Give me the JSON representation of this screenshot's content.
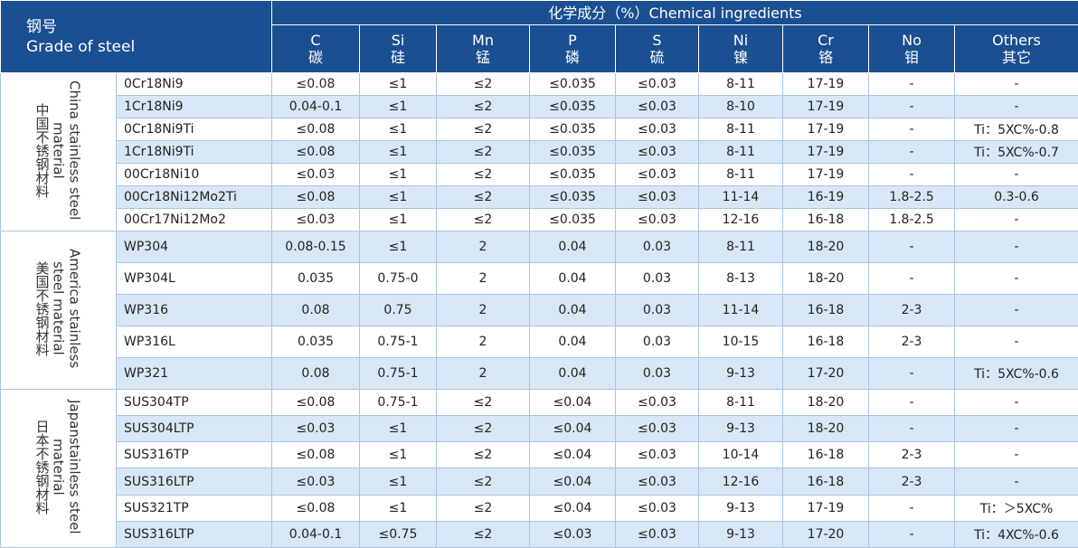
{
  "header": {
    "grade_zh": "钢号",
    "grade_en": "Grade of steel",
    "group_title": "化学成分（%）Chemical ingredients",
    "columns": [
      {
        "symbol": "C",
        "zh": "碳"
      },
      {
        "symbol": "Si",
        "zh": "硅"
      },
      {
        "symbol": "Mn",
        "zh": "锰"
      },
      {
        "symbol": "P",
        "zh": "磷"
      },
      {
        "symbol": "S",
        "zh": "硫"
      },
      {
        "symbol": "Ni",
        "zh": "镍"
      },
      {
        "symbol": "Cr",
        "zh": "铬"
      },
      {
        "symbol": "No",
        "zh": "钼"
      },
      {
        "symbol": "Others",
        "zh": "其它"
      }
    ]
  },
  "groups": [
    {
      "label_en": "China stainless steel material",
      "label_zh": "中国不锈钢材料",
      "rows": [
        [
          "0Cr18Ni9",
          "≤0.08",
          "≤1",
          "≤2",
          "≤0.035",
          "≤0.03",
          "8-11",
          "17-19",
          "-",
          "-"
        ],
        [
          "1Cr18Ni9",
          "0.04-0.1",
          "≤1",
          "≤2",
          "≤0.035",
          "≤0.03",
          "8-10",
          "17-19",
          "-",
          "-"
        ],
        [
          "0Cr18Ni9Ti",
          "≤0.08",
          "≤1",
          "≤2",
          "≤0.035",
          "≤0.03",
          "8-11",
          "17-19",
          "-",
          "Ti：5XC%-0.8"
        ],
        [
          "1Cr18Ni9Ti",
          "≤0.08",
          "≤1",
          "≤2",
          "≤0.035",
          "≤0.03",
          "8-11",
          "17-19",
          "-",
          "Ti：5XC%-0.7"
        ],
        [
          "00Cr18Ni10",
          "≤0.03",
          "≤1",
          "≤2",
          "≤0.035",
          "≤0.03",
          "8-11",
          "17-19",
          "-",
          "-"
        ],
        [
          "00Cr18Ni12Mo2Ti",
          "≤0.08",
          "≤1",
          "≤2",
          "≤0.035",
          "≤0.03",
          "11-14",
          "16-19",
          "1.8-2.5",
          "0.3-0.6"
        ],
        [
          "00Cr17Ni12Mo2",
          "≤0.03",
          "≤1",
          "≤2",
          "≤0.035",
          "≤0.03",
          "12-16",
          "16-18",
          "1.8-2.5",
          "-"
        ]
      ]
    },
    {
      "label_en": "America stainless steel material",
      "label_zh": "美国不锈钢材料",
      "rows": [
        [
          "WP304",
          "0.08-0.15",
          "≤1",
          "2",
          "0.04",
          "0.03",
          "8-11",
          "18-20",
          "-",
          "-"
        ],
        [
          "WP304L",
          "0.035",
          "0.75-0",
          "2",
          "0.04",
          "0.03",
          "8-13",
          "18-20",
          "-",
          "-"
        ],
        [
          "WP316",
          "0.08",
          "0.75",
          "2",
          "0.04",
          "0.03",
          "11-14",
          "16-18",
          "2-3",
          "-"
        ],
        [
          "WP316L",
          "0.035",
          "0.75-1",
          "2",
          "0.04",
          "0.03",
          "10-15",
          "16-18",
          "2-3",
          "-"
        ],
        [
          "WP321",
          "0.08",
          "0.75-1",
          "2",
          "0.04",
          "0.03",
          "9-13",
          "17-20",
          "-",
          "Ti：5XC%-0.6"
        ]
      ]
    },
    {
      "label_en": "Japanstainless steel material",
      "label_zh": "日本不锈钢材料",
      "rows": [
        [
          "SUS304TP",
          "≤0.08",
          "0.75-1",
          "≤2",
          "≤0.04",
          "≤0.03",
          "8-11",
          "18-20",
          "-",
          "-"
        ],
        [
          "SUS304LTP",
          "≤0.03",
          "≤1",
          "≤2",
          "≤0.04",
          "≤0.03",
          "9-13",
          "18-20",
          "-",
          "-"
        ],
        [
          "SUS316TP",
          "≤0.08",
          "≤1",
          "≤2",
          "≤0.04",
          "≤0.03",
          "10-14",
          "16-18",
          "2-3",
          "-"
        ],
        [
          "SUS316LTP",
          "≤0.03",
          "≤1",
          "≤2",
          "≤0.04",
          "≤0.03",
          "12-16",
          "16-18",
          "2-3",
          "-"
        ],
        [
          "SUS321TP",
          "≤0.08",
          "≤1",
          "≤2",
          "≤0.04",
          "≤0.03",
          "9-13",
          "17-19",
          "-",
          "Ti：＞5XC%"
        ],
        [
          "SUS316LTP",
          "0.04-0.1",
          "≤0.75",
          "≤2",
          "≤0.03",
          "≤0.03",
          "9-13",
          "17-20",
          "-",
          "Ti：4XC%-0.6"
        ]
      ]
    }
  ]
}
